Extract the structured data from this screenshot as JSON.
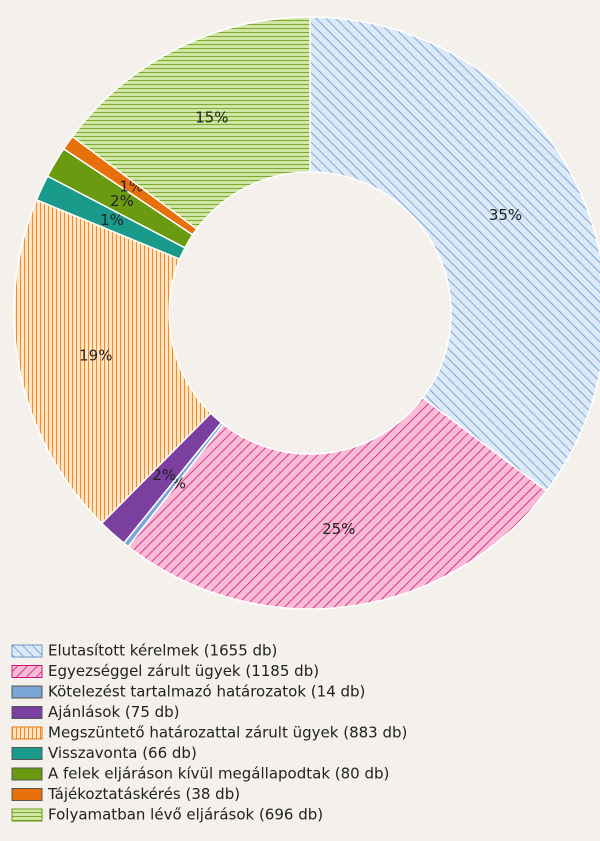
{
  "chart_data": {
    "type": "donut",
    "categories": [
      "Elutasított kérelmek (1655 db)",
      "Egyezséggel zárult ügyek (1185 db)",
      "Kötelezést tartalmazó határozatok (14 db)",
      "Ajánlások (75 db)",
      "Megszüntető határozattal zárult ügyek (883 db)",
      "Visszavonta (66 db)",
      "A felek eljáráson kívül megállapodtak (80 db)",
      "Tájékoztatáskérés (38 db)",
      "Folyamatban lévő eljárások (696 db)"
    ],
    "values": [
      1655,
      1185,
      14,
      75,
      883,
      66,
      80,
      38,
      696
    ],
    "value_labels": [
      "35%",
      "25%",
      "0%",
      "2%",
      "19%",
      "1%",
      "2%",
      "1%",
      "15%"
    ],
    "colors": [
      "#dce9f6",
      "#f8bcd6",
      "#7ba7d6",
      "#7b3fa0",
      "#fde4c2",
      "#1a9a8a",
      "#6a9a10",
      "#e8700a",
      "#cfe6a4"
    ],
    "legend": "bottom"
  }
}
